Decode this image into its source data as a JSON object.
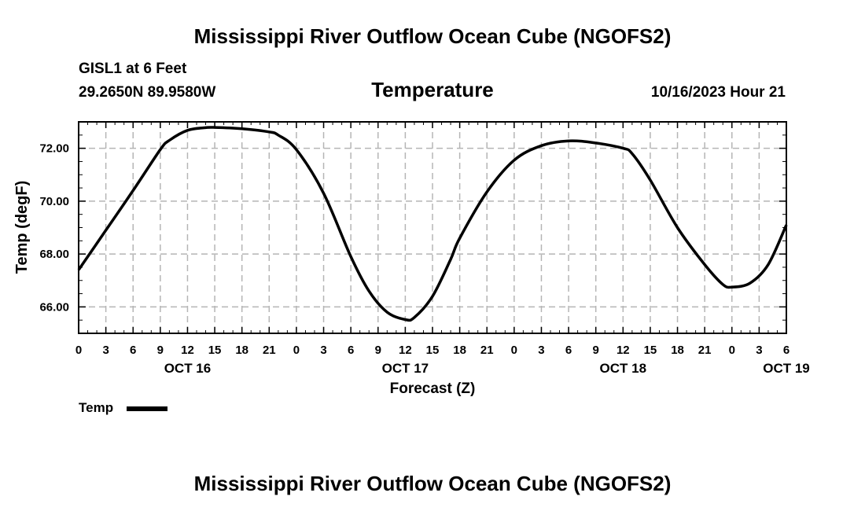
{
  "header": {
    "title": "Mississippi River Outflow Ocean Cube (NGOFS2)",
    "station": "GISL1 at 6 Feet",
    "coords": "29.2650N  89.9580W",
    "variable": "Temperature",
    "datetime": "10/16/2023 Hour 21"
  },
  "footer": {
    "title": "Mississippi River Outflow Ocean Cube (NGOFS2)"
  },
  "legend": {
    "label": "Temp"
  },
  "chart_data": {
    "type": "line",
    "title": "Temperature",
    "xlabel": "Forecast (Z)",
    "ylabel": "Temp (degF)",
    "x_unit": "hours since OCT 16 00Z",
    "xlim": [
      0,
      78
    ],
    "ylim": [
      65.0,
      73.0
    ],
    "yticks": [
      66,
      68,
      70,
      72
    ],
    "ytick_labels": [
      "66.00",
      "68.00",
      "70.00",
      "72.00"
    ],
    "xticks": [
      0,
      3,
      6,
      9,
      12,
      15,
      18,
      21,
      24,
      27,
      30,
      33,
      36,
      39,
      42,
      45,
      48,
      51,
      54,
      57,
      60,
      63,
      66,
      69,
      72,
      75,
      78
    ],
    "xtick_labels": [
      "0",
      "3",
      "6",
      "9",
      "12",
      "15",
      "18",
      "21",
      "0",
      "3",
      "6",
      "9",
      "12",
      "15",
      "18",
      "21",
      "0",
      "3",
      "6",
      "9",
      "12",
      "15",
      "18",
      "21",
      "0",
      "3",
      "6"
    ],
    "date_labels": [
      {
        "x": 12,
        "label": "OCT 16"
      },
      {
        "x": 36,
        "label": "OCT 17"
      },
      {
        "x": 60,
        "label": "OCT 18"
      },
      {
        "x": 78,
        "label": "OCT 19"
      }
    ],
    "grid": true,
    "series": [
      {
        "name": "Temp",
        "color": "#000000",
        "x": [
          0,
          3,
          6,
          9,
          10,
          12,
          14,
          15,
          18,
          21,
          22,
          24,
          27,
          30,
          32,
          34,
          36,
          37,
          39,
          41,
          42,
          45,
          48,
          51,
          54,
          57,
          60,
          61,
          63,
          66,
          69,
          71,
          72,
          74,
          76,
          78
        ],
        "y": [
          67.4,
          68.9,
          70.4,
          71.95,
          72.3,
          72.68,
          72.78,
          72.79,
          72.74,
          72.62,
          72.5,
          71.95,
          70.3,
          67.9,
          66.6,
          65.8,
          65.52,
          65.6,
          66.4,
          67.8,
          68.6,
          70.35,
          71.55,
          72.1,
          72.28,
          72.2,
          72.0,
          71.8,
          70.8,
          69.0,
          67.6,
          66.85,
          66.75,
          66.9,
          67.6,
          69.1
        ]
      }
    ]
  }
}
